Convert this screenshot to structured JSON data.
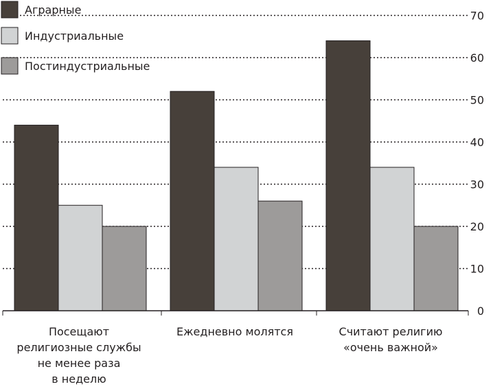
{
  "chart_data": {
    "type": "bar",
    "categories": [
      [
        "Посещают",
        "религиозные службы",
        "не менее раза",
        "в неделю"
      ],
      [
        "Ежедневно молятся"
      ],
      [
        "Считают религию",
        "«очень важной»"
      ]
    ],
    "series": [
      {
        "name": "Аграрные",
        "values": [
          44,
          52,
          64
        ],
        "color": "#47403a"
      },
      {
        "name": "Индустриальные",
        "values": [
          25,
          34,
          34
        ],
        "color": "#d1d3d4"
      },
      {
        "name": "Постиндустриальные",
        "values": [
          20,
          26,
          20
        ],
        "color": "#9d9b9a"
      }
    ],
    "yticks": [
      0,
      10,
      20,
      30,
      40,
      50,
      60,
      70
    ],
    "ylim": [
      0,
      72
    ],
    "grid": true,
    "legend_position": "top-left",
    "axis_position": "right"
  }
}
